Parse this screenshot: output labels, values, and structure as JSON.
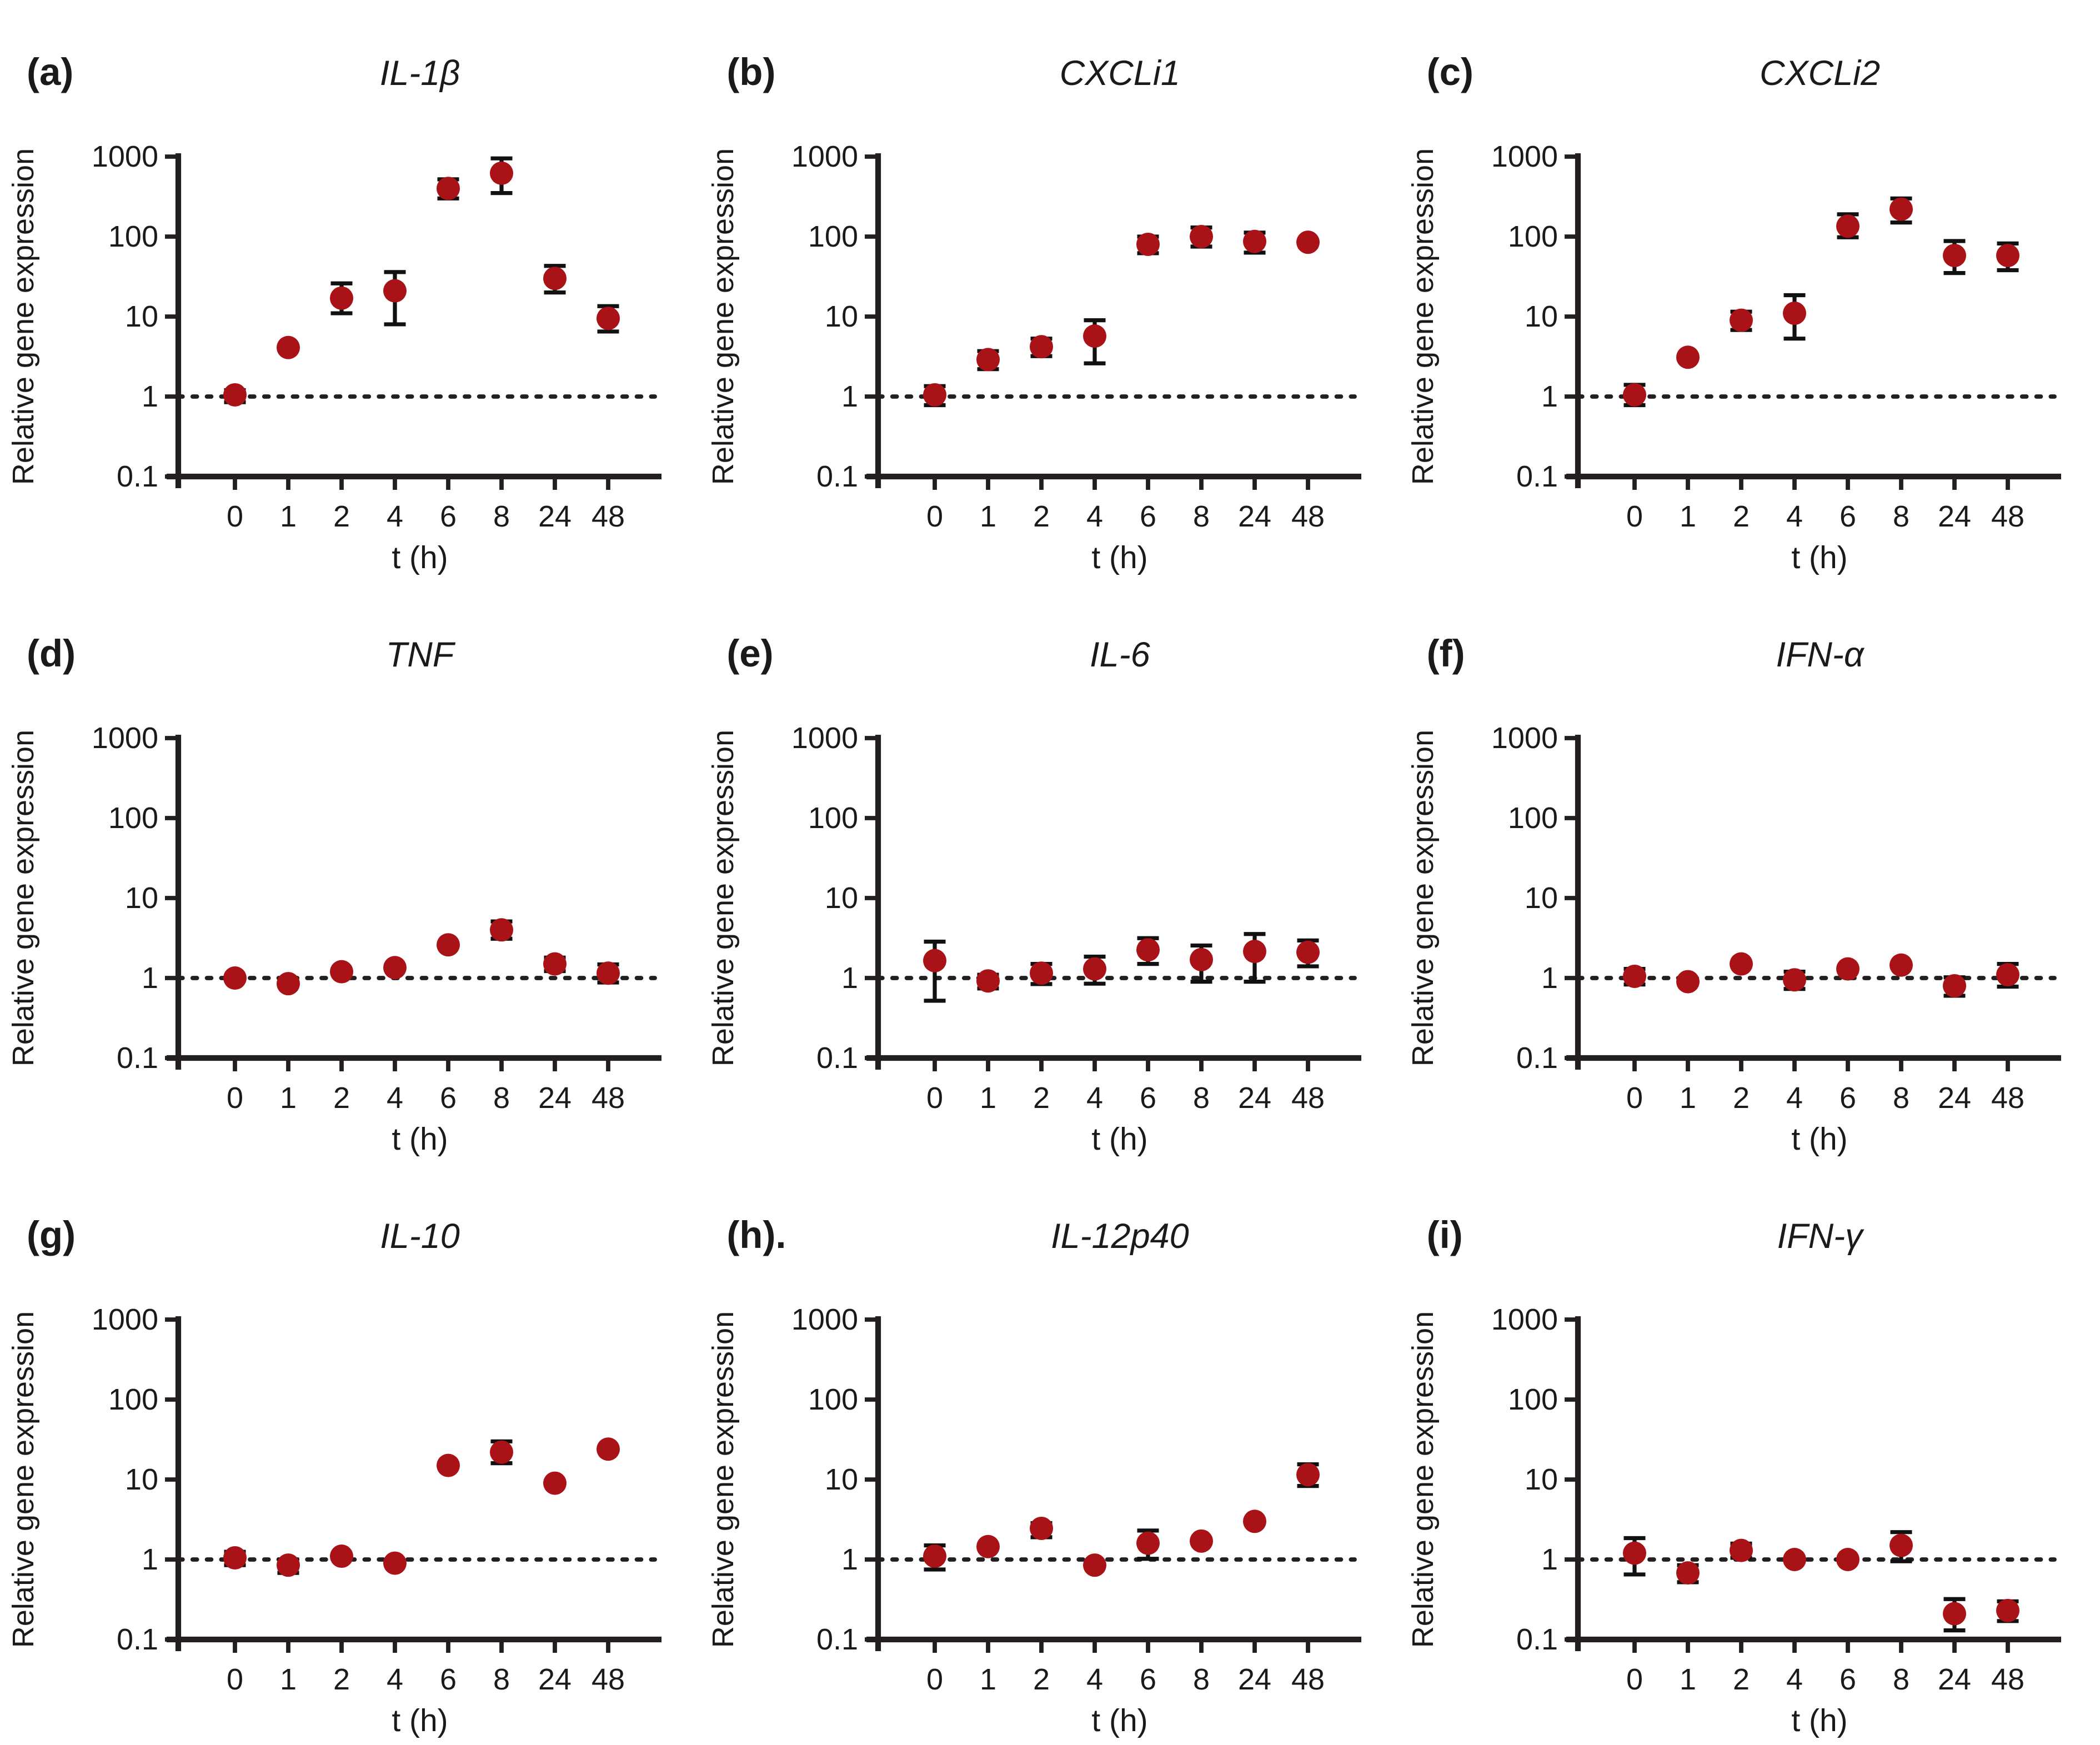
{
  "figure_title": "Relative gene expression time-course panels",
  "chart_data": {
    "type": "scatter",
    "scale": "log",
    "ylabel": "Relative gene expression",
    "xlabel": "t (h)",
    "x_categories": [
      "0",
      "1",
      "2",
      "4",
      "6",
      "8",
      "24",
      "48"
    ],
    "yticks": [
      "1000",
      "100",
      "10",
      "1",
      "0.1"
    ],
    "ylim": [
      0.1,
      1000
    ],
    "ref_line": 1,
    "grid": false,
    "legend": null,
    "marker_color": "#a91216",
    "error_color": "#111111",
    "axis_color": "#231f20",
    "text_color": "#1a1a1a",
    "panels": [
      {
        "label": "(a)",
        "title": "IL-1β",
        "y": [
          1.05,
          4.1,
          17,
          21,
          400,
          620,
          30,
          9.5
        ],
        "err_lo": [
          0.85,
          4.1,
          11,
          8,
          300,
          350,
          20,
          6.5
        ],
        "err_hi": [
          1.2,
          4.1,
          26,
          36,
          520,
          950,
          43,
          13.5
        ]
      },
      {
        "label": "(b)",
        "title": "CXCLi1",
        "y": [
          1.05,
          2.9,
          4.2,
          5.7,
          80,
          100,
          87,
          85
        ],
        "err_lo": [
          0.78,
          2.2,
          3.2,
          2.6,
          62,
          75,
          63,
          85
        ],
        "err_hi": [
          1.35,
          3.7,
          5.3,
          9.0,
          100,
          130,
          112,
          85
        ]
      },
      {
        "label": "(c)",
        "title": "CXCLi2",
        "y": [
          1.05,
          3.1,
          9.0,
          11,
          135,
          220,
          58,
          58
        ],
        "err_lo": [
          0.78,
          3.1,
          6.8,
          5.3,
          98,
          150,
          35,
          38
        ],
        "err_hi": [
          1.4,
          3.1,
          11.5,
          18.5,
          190,
          300,
          88,
          82
        ]
      },
      {
        "label": "(d)",
        "title": "TNF",
        "y": [
          1.0,
          0.85,
          1.2,
          1.35,
          2.6,
          4.0,
          1.5,
          1.15
        ],
        "err_lo": [
          1.0,
          0.85,
          1.2,
          1.35,
          2.6,
          3.1,
          1.22,
          0.88
        ],
        "err_hi": [
          1.0,
          0.85,
          1.2,
          1.35,
          2.6,
          5.1,
          1.8,
          1.48
        ]
      },
      {
        "label": "(e)",
        "title": "IL-6",
        "y": [
          1.65,
          0.92,
          1.15,
          1.3,
          2.25,
          1.7,
          2.15,
          2.1
        ],
        "err_lo": [
          0.52,
          0.74,
          0.84,
          0.85,
          1.5,
          0.9,
          0.9,
          1.4
        ],
        "err_hi": [
          2.85,
          1.1,
          1.5,
          1.85,
          3.15,
          2.55,
          3.55,
          2.95
        ]
      },
      {
        "label": "(f)",
        "title": "IFN-α",
        "y": [
          1.05,
          0.9,
          1.5,
          0.95,
          1.3,
          1.45,
          0.8,
          1.1
        ],
        "err_lo": [
          0.83,
          0.9,
          1.5,
          0.73,
          1.3,
          1.45,
          0.6,
          0.78
        ],
        "err_hi": [
          1.3,
          0.9,
          1.5,
          1.2,
          1.3,
          1.45,
          1.02,
          1.5
        ]
      },
      {
        "label": "(g)",
        "title": "IL-10",
        "y": [
          1.05,
          0.85,
          1.1,
          0.9,
          15,
          22,
          9,
          24
        ],
        "err_lo": [
          0.85,
          0.68,
          1.1,
          0.9,
          15,
          16,
          9,
          24
        ],
        "err_hi": [
          1.25,
          1.0,
          1.1,
          0.9,
          15,
          30,
          9,
          24
        ]
      },
      {
        "label": "(h).",
        "title": "IL-12p40",
        "y": [
          1.1,
          1.45,
          2.45,
          0.85,
          1.6,
          1.7,
          3.0,
          11.5
        ],
        "err_lo": [
          0.75,
          1.45,
          1.9,
          0.85,
          1.02,
          1.7,
          3.0,
          8.3
        ],
        "err_hi": [
          1.5,
          1.45,
          2.85,
          0.85,
          2.3,
          1.7,
          3.0,
          15.5
        ]
      },
      {
        "label": "(i)",
        "title": "IFN-γ",
        "y": [
          1.2,
          0.68,
          1.3,
          1.0,
          1.0,
          1.5,
          0.21,
          0.23
        ],
        "err_lo": [
          0.65,
          0.52,
          1.05,
          1.0,
          1.0,
          0.95,
          0.13,
          0.17
        ],
        "err_hi": [
          1.85,
          0.85,
          1.58,
          1.0,
          1.0,
          2.2,
          0.32,
          0.3
        ]
      }
    ]
  }
}
